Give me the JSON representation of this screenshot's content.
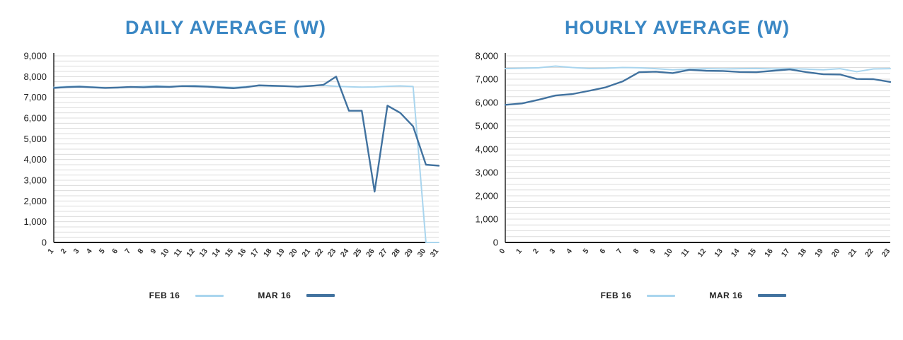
{
  "colors": {
    "title": "#3a87c4",
    "feb_line": "#a9d5ee",
    "mar_line": "#41729f",
    "grid": "#dcdcdc",
    "axis": "#1a1a1a",
    "tick_text": "#1b1b1b",
    "xlabel_text": "#333333"
  },
  "chart_data": [
    {
      "type": "line",
      "title": "DAILY AVERAGE (W)",
      "xlabel": "",
      "ylabel": "",
      "ylim": [
        0,
        9000
      ],
      "ytick_step": 1000,
      "minor_grid_step": 250,
      "grid": true,
      "legend_position": "bottom",
      "categories": [
        "1",
        "2",
        "3",
        "4",
        "5",
        "6",
        "7",
        "8",
        "9",
        "10",
        "11",
        "12",
        "13",
        "14",
        "15",
        "16",
        "17",
        "18",
        "19",
        "20",
        "21",
        "22",
        "23",
        "24",
        "25",
        "26",
        "27",
        "28",
        "29",
        "30",
        "31"
      ],
      "series": [
        {
          "name": "FEB 16",
          "color": "#a9d5ee",
          "width": 2,
          "values": [
            7480,
            7520,
            7540,
            7500,
            7470,
            7460,
            7500,
            7530,
            7560,
            7520,
            7550,
            7570,
            7540,
            7510,
            7480,
            7520,
            7560,
            7540,
            7530,
            7520,
            7560,
            7580,
            7530,
            7510,
            7490,
            7500,
            7530,
            7550,
            7520,
            0,
            0
          ]
        },
        {
          "name": "MAR 16",
          "color": "#41729f",
          "width": 2.4,
          "values": [
            7450,
            7490,
            7510,
            7480,
            7450,
            7470,
            7500,
            7480,
            7510,
            7500,
            7540,
            7530,
            7510,
            7470,
            7440,
            7490,
            7580,
            7560,
            7540,
            7510,
            7550,
            7600,
            8000,
            6350,
            6350,
            2450,
            6600,
            6250,
            5600,
            3750,
            3700
          ]
        }
      ]
    },
    {
      "type": "line",
      "title": "HOURLY AVERAGE (W)",
      "xlabel": "",
      "ylabel": "",
      "ylim": [
        0,
        8000
      ],
      "ytick_step": 1000,
      "minor_grid_step": 250,
      "grid": true,
      "legend_position": "bottom",
      "categories": [
        "0",
        "1",
        "2",
        "3",
        "4",
        "5",
        "6",
        "7",
        "8",
        "9",
        "10",
        "11",
        "12",
        "13",
        "14",
        "15",
        "16",
        "17",
        "18",
        "19",
        "20",
        "21",
        "22",
        "23"
      ],
      "series": [
        {
          "name": "FEB 16",
          "color": "#a9d5ee",
          "width": 2,
          "values": [
            7450,
            7470,
            7490,
            7560,
            7500,
            7460,
            7470,
            7500,
            7490,
            7450,
            7400,
            7430,
            7450,
            7440,
            7450,
            7460,
            7440,
            7450,
            7430,
            7400,
            7450,
            7320,
            7440,
            7450
          ]
        },
        {
          "name": "MAR 16",
          "color": "#41729f",
          "width": 2.4,
          "values": [
            5900,
            5960,
            6120,
            6300,
            6360,
            6500,
            6650,
            6900,
            7300,
            7320,
            7260,
            7400,
            7360,
            7350,
            7310,
            7300,
            7360,
            7420,
            7300,
            7210,
            7200,
            7010,
            7000,
            6880
          ]
        }
      ]
    }
  ]
}
